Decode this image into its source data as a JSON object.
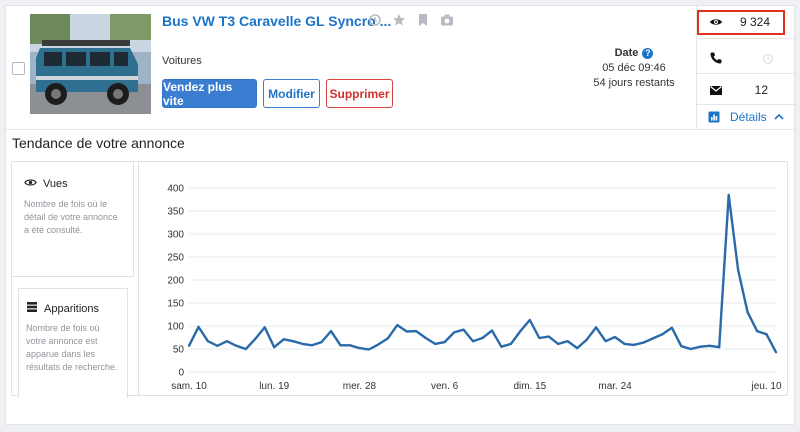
{
  "listing": {
    "title": "Bus VW T3 Caravelle GL Syncro ...",
    "category": "Voitures",
    "photo_alt": "VW T3 Caravelle bleu"
  },
  "actions": {
    "boost": "Vendez plus vite",
    "modify": "Modifier",
    "delete": "Supprimer"
  },
  "date": {
    "label": "Date",
    "published": "05 déc 09:46",
    "remaining": "54 jours restants"
  },
  "stats": {
    "views": "9 324",
    "calls": "",
    "messages": "12",
    "details": "Détails"
  },
  "trend": {
    "title": "Tendance de votre annonce",
    "views": {
      "label": "Vues",
      "description": "Nombre de fois où le détail de votre annonce a été consulté."
    },
    "appearances": {
      "label": "Apparitions",
      "description": "Nombre de fois où votre annonce est apparue dans les résultats de recherche."
    }
  },
  "chart_data": {
    "type": "line",
    "color": "#2a6aa8",
    "ylim": [
      0,
      400
    ],
    "y_ticks": [
      0,
      50,
      100,
      150,
      200,
      250,
      300,
      350,
      400
    ],
    "x_tick_labels": [
      "sam. 10",
      "lun. 19",
      "mer. 28",
      "ven. 6",
      "dim. 15",
      "mar. 24",
      "jeu. 10"
    ],
    "x_tick_index": [
      0,
      9,
      18,
      27,
      36,
      45,
      61
    ],
    "values": [
      57,
      98,
      67,
      57,
      67,
      57,
      50,
      72,
      97,
      54,
      71,
      67,
      61,
      58,
      65,
      89,
      58,
      58,
      52,
      49,
      60,
      73,
      102,
      88,
      89,
      74,
      61,
      65,
      86,
      92,
      67,
      74,
      90,
      55,
      61,
      89,
      113,
      74,
      77,
      61,
      67,
      52,
      70,
      97,
      67,
      76,
      61,
      59,
      64,
      73,
      82,
      96,
      56,
      50,
      55,
      57,
      54,
      385,
      222,
      130,
      89,
      82,
      43
    ]
  }
}
